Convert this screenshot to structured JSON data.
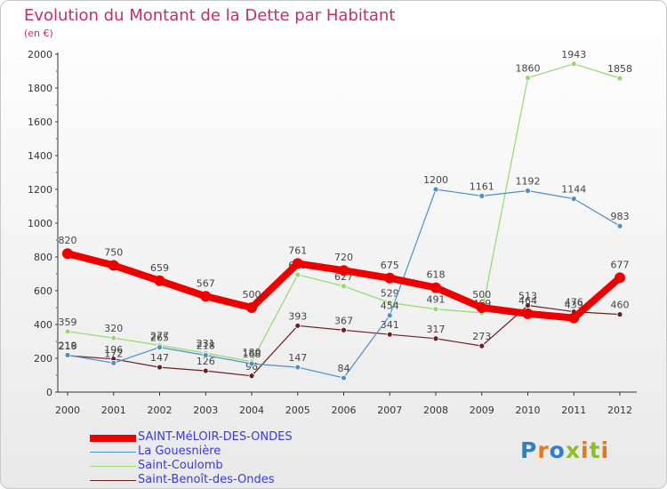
{
  "title": "Evolution du Montant de la Dette par Habitant",
  "subtitle": "(en €)",
  "logo": "Proxiti",
  "chart_data": {
    "type": "line",
    "x": [
      2000,
      2001,
      2002,
      2003,
      2004,
      2005,
      2006,
      2007,
      2008,
      2009,
      2010,
      2011,
      2012
    ],
    "ylim": [
      0,
      2000
    ],
    "yticks": [
      0,
      200,
      400,
      600,
      800,
      1000,
      1200,
      1400,
      1600,
      1800,
      2000
    ],
    "grid": false,
    "legend_position": "bottom-left",
    "series": [
      {
        "name": "SAINT-MéLOIR-DES-ONDES",
        "color": "#ee0000",
        "values": [
          820,
          750,
          659,
          567,
          500,
          761,
          720,
          675,
          618,
          500,
          464,
          439,
          677
        ]
      },
      {
        "name": "La Gouesnière",
        "color": "#4d8fc8",
        "values": [
          219,
          172,
          265,
          218,
          168,
          147,
          84,
          454,
          1200,
          1161,
          1192,
          1144,
          983
        ]
      },
      {
        "name": "Saint-Coulomb",
        "color": "#8fdb6e",
        "values": [
          359,
          320,
          277,
          231,
          180,
          695,
          627,
          529,
          491,
          469,
          1860,
          1943,
          1858
        ]
      },
      {
        "name": "Saint-Benoît-des-Ondes",
        "color": "#6b1f24",
        "values": [
          216,
          196,
          147,
          126,
          96,
          393,
          367,
          341,
          317,
          273,
          513,
          476,
          460
        ]
      }
    ]
  }
}
